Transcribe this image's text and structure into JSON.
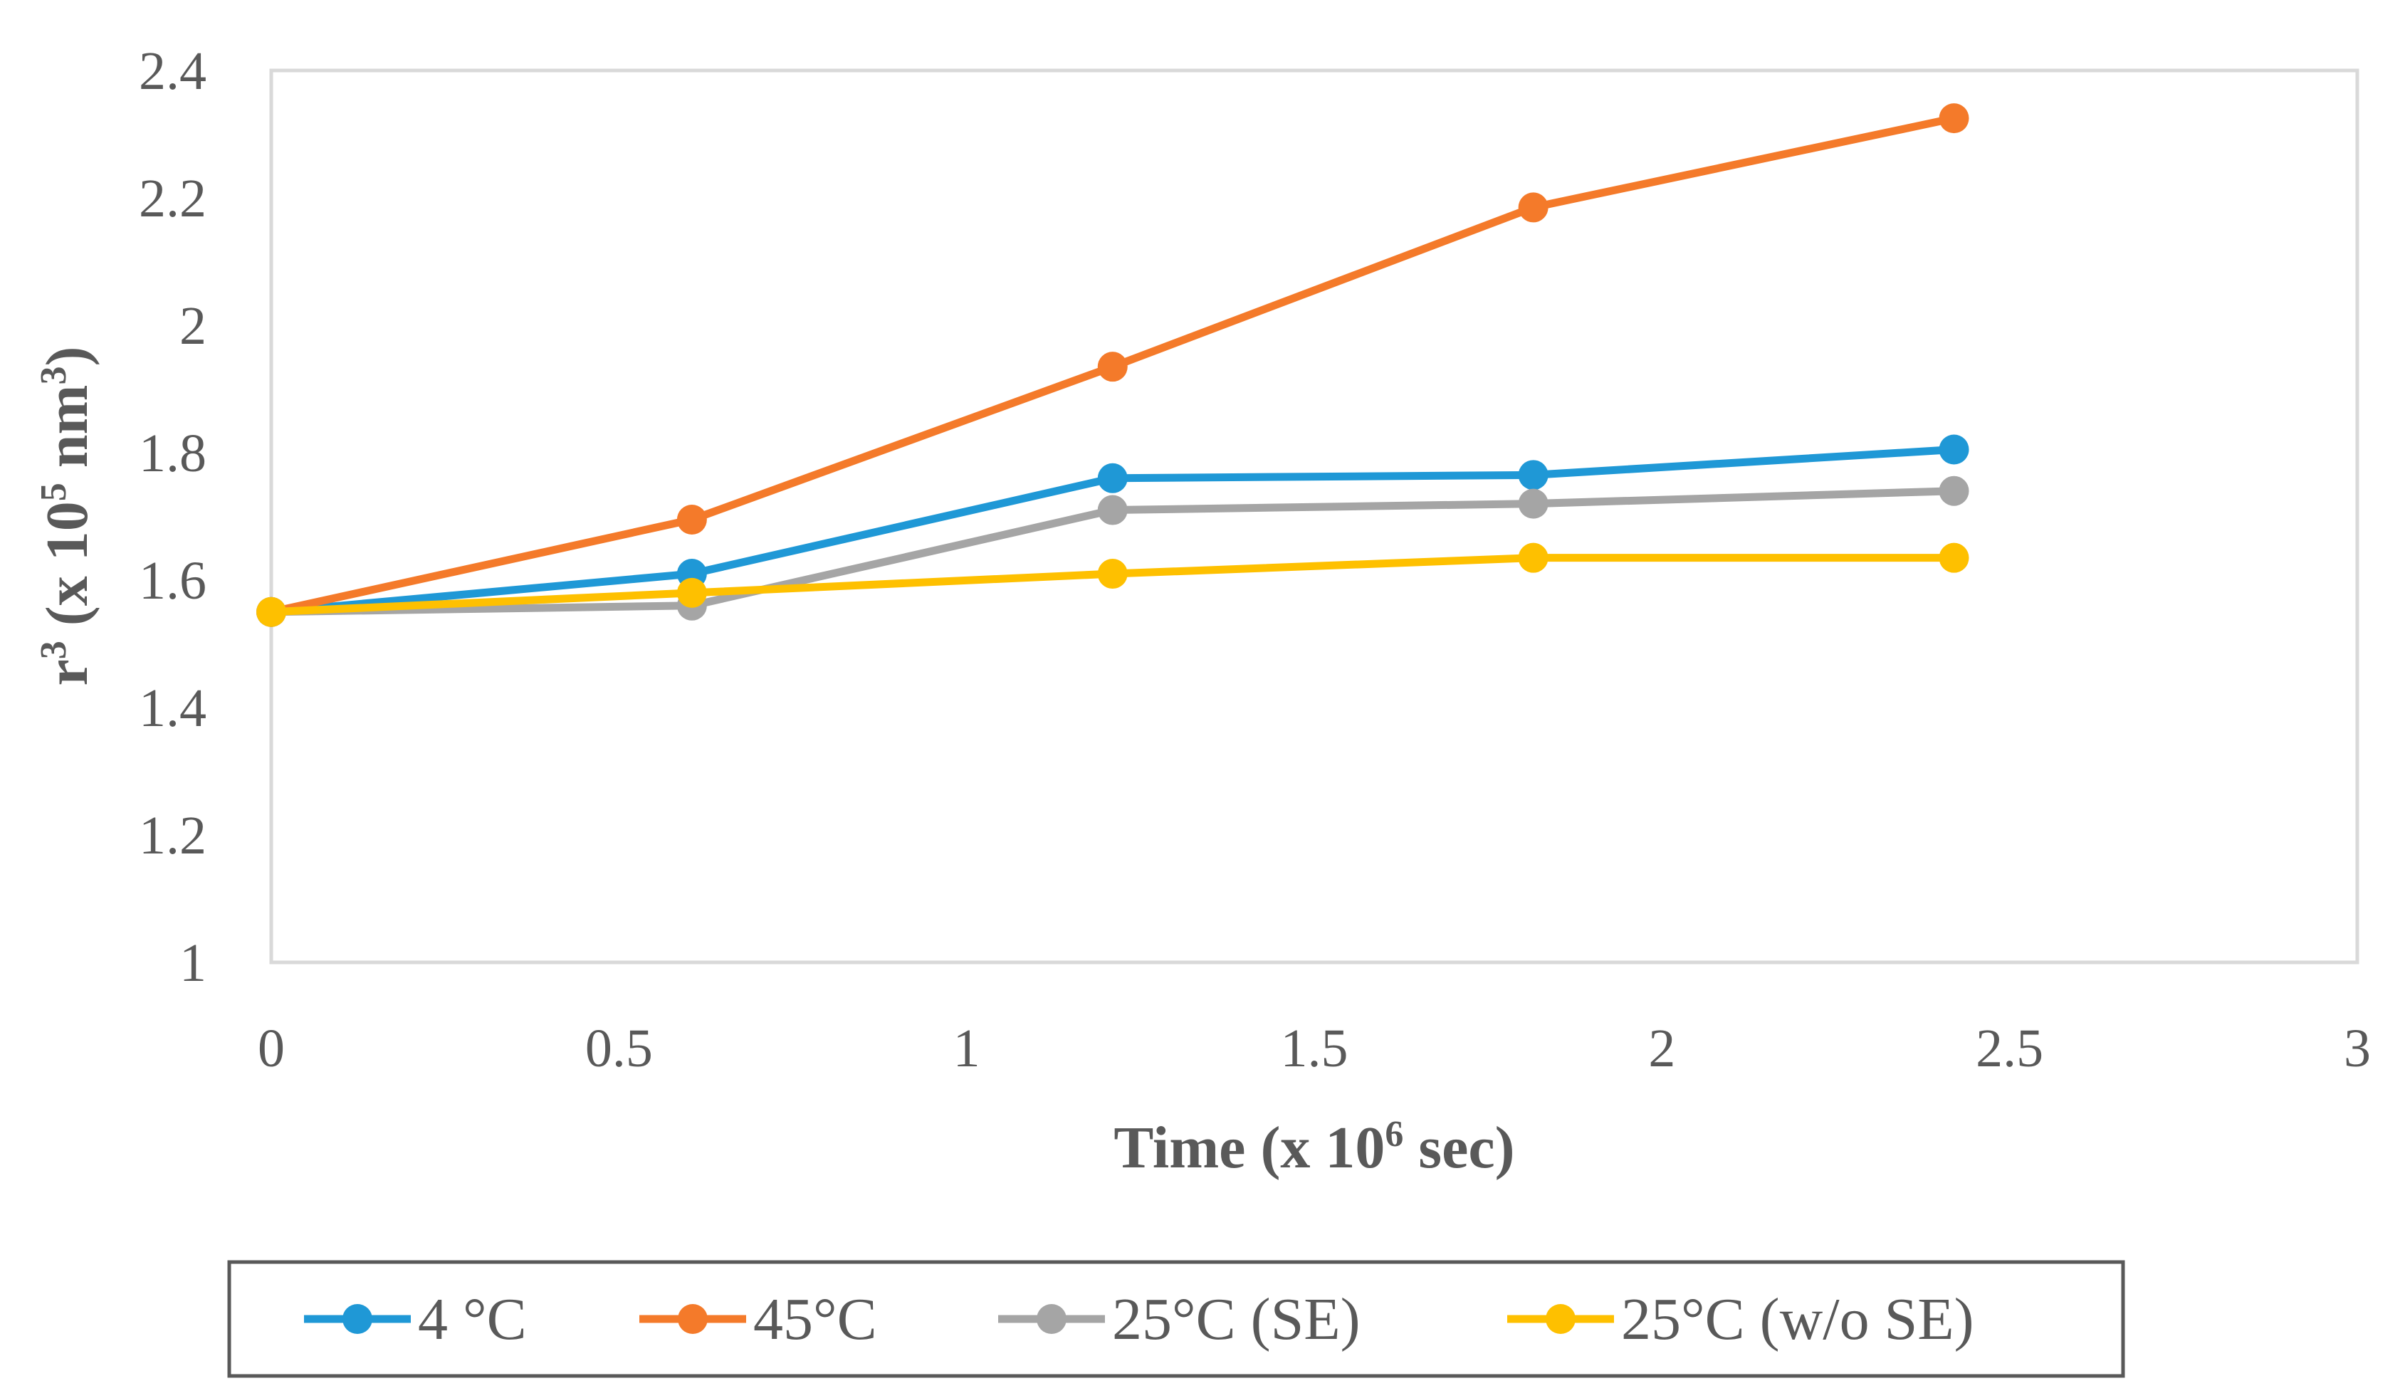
{
  "chart_data": {
    "type": "line",
    "title": "",
    "xlabel": {
      "base": "Time (x 10",
      "sup": "6",
      "tail": " sec)"
    },
    "ylabel": {
      "a": "r",
      "a_sup": "3",
      "b": " (x 10",
      "b_sup": "5",
      "c": " nm",
      "c_sup": "3",
      "d": ")"
    },
    "xlim": [
      0,
      3
    ],
    "ylim": [
      1,
      2.4
    ],
    "x_ticks": [
      0,
      0.5,
      1,
      1.5,
      2,
      2.5,
      3
    ],
    "x_tick_labels": [
      "0",
      "0.5",
      "1",
      "1.5",
      "2",
      "2.5",
      "3"
    ],
    "y_ticks": [
      1,
      1.2,
      1.4,
      1.6,
      1.8,
      2,
      2.2,
      2.4
    ],
    "y_tick_labels": [
      "1",
      "1.2",
      "1.4",
      "1.6",
      "1.8",
      "2",
      "2.2",
      "2.4"
    ],
    "grid": false,
    "legend_position": "bottom",
    "x": [
      0,
      0.605,
      1.21,
      1.815,
      2.42
    ],
    "series": [
      {
        "name": "4 °C",
        "color": "#1f98d6",
        "values": [
          1.55,
          1.61,
          1.76,
          1.765,
          1.805
        ]
      },
      {
        "name": "45°C",
        "color": "#f47a2a",
        "values": [
          1.55,
          1.695,
          1.935,
          2.185,
          2.325
        ]
      },
      {
        "name": "25°C (SE)",
        "color": "#a5a5a5",
        "values": [
          1.55,
          1.56,
          1.71,
          1.72,
          1.74
        ]
      },
      {
        "name": "25°C (w/o SE)",
        "color": "#fec000",
        "values": [
          1.55,
          1.58,
          1.61,
          1.635,
          1.635
        ]
      }
    ]
  }
}
